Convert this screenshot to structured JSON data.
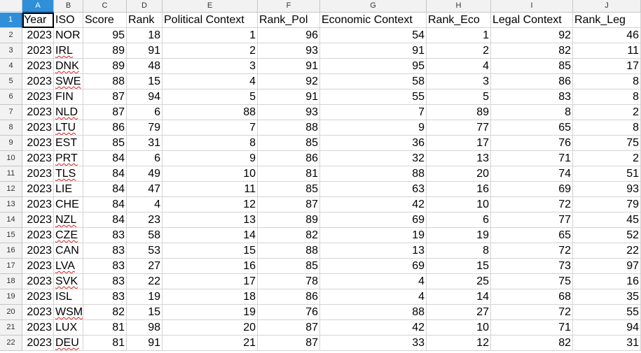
{
  "columns": [
    "A",
    "B",
    "C",
    "D",
    "E",
    "F",
    "G",
    "H",
    "I",
    "J"
  ],
  "active_column": "A",
  "active_row": 1,
  "headers": [
    "Year",
    "ISO",
    "Score",
    "Rank",
    "Political Context",
    "Rank_Pol",
    "Economic Context",
    "Rank_Eco",
    "Legal Context",
    "Rank_Leg"
  ],
  "row_numbers": [
    1,
    2,
    3,
    4,
    5,
    6,
    7,
    8,
    9,
    10,
    11,
    12,
    13,
    14,
    15,
    16,
    17,
    18,
    19,
    20,
    21,
    22
  ],
  "misspelled_iso": [
    "IRL",
    "DNK",
    "SWE",
    "NLD",
    "LTU",
    "PRT",
    "TLS",
    "NZL",
    "CZE",
    "LVA",
    "SVK",
    "WSM",
    "DEU"
  ],
  "rows": [
    [
      2023,
      "NOR",
      95,
      18,
      1,
      96,
      54,
      1,
      92,
      46
    ],
    [
      2023,
      "IRL",
      89,
      91,
      2,
      93,
      91,
      2,
      82,
      11
    ],
    [
      2023,
      "DNK",
      89,
      48,
      3,
      91,
      95,
      4,
      85,
      17
    ],
    [
      2023,
      "SWE",
      88,
      15,
      4,
      92,
      58,
      3,
      86,
      8
    ],
    [
      2023,
      "FIN",
      87,
      94,
      5,
      91,
      55,
      5,
      83,
      8
    ],
    [
      2023,
      "NLD",
      87,
      6,
      88,
      93,
      7,
      89,
      8,
      2
    ],
    [
      2023,
      "LTU",
      86,
      79,
      7,
      88,
      9,
      77,
      65,
      8
    ],
    [
      2023,
      "EST",
      85,
      31,
      8,
      85,
      36,
      17,
      76,
      75
    ],
    [
      2023,
      "PRT",
      84,
      6,
      9,
      86,
      32,
      13,
      71,
      2
    ],
    [
      2023,
      "TLS",
      84,
      49,
      10,
      81,
      88,
      20,
      74,
      51
    ],
    [
      2023,
      "LIE",
      84,
      47,
      11,
      85,
      63,
      16,
      69,
      93
    ],
    [
      2023,
      "CHE",
      84,
      4,
      12,
      87,
      42,
      10,
      72,
      79
    ],
    [
      2023,
      "NZL",
      84,
      23,
      13,
      89,
      69,
      6,
      77,
      45
    ],
    [
      2023,
      "CZE",
      83,
      58,
      14,
      82,
      19,
      19,
      65,
      52
    ],
    [
      2023,
      "CAN",
      83,
      53,
      15,
      88,
      13,
      8,
      72,
      22
    ],
    [
      2023,
      "LVA",
      83,
      27,
      16,
      85,
      69,
      15,
      73,
      97
    ],
    [
      2023,
      "SVK",
      83,
      22,
      17,
      78,
      4,
      25,
      75,
      16
    ],
    [
      2023,
      "ISL",
      83,
      19,
      18,
      86,
      4,
      14,
      68,
      35
    ],
    [
      2023,
      "WSM",
      82,
      15,
      19,
      76,
      88,
      27,
      72,
      55
    ],
    [
      2023,
      "LUX",
      81,
      98,
      20,
      87,
      42,
      10,
      71,
      94
    ],
    [
      2023,
      "DEU",
      81,
      91,
      21,
      87,
      33,
      12,
      82,
      31
    ]
  ]
}
